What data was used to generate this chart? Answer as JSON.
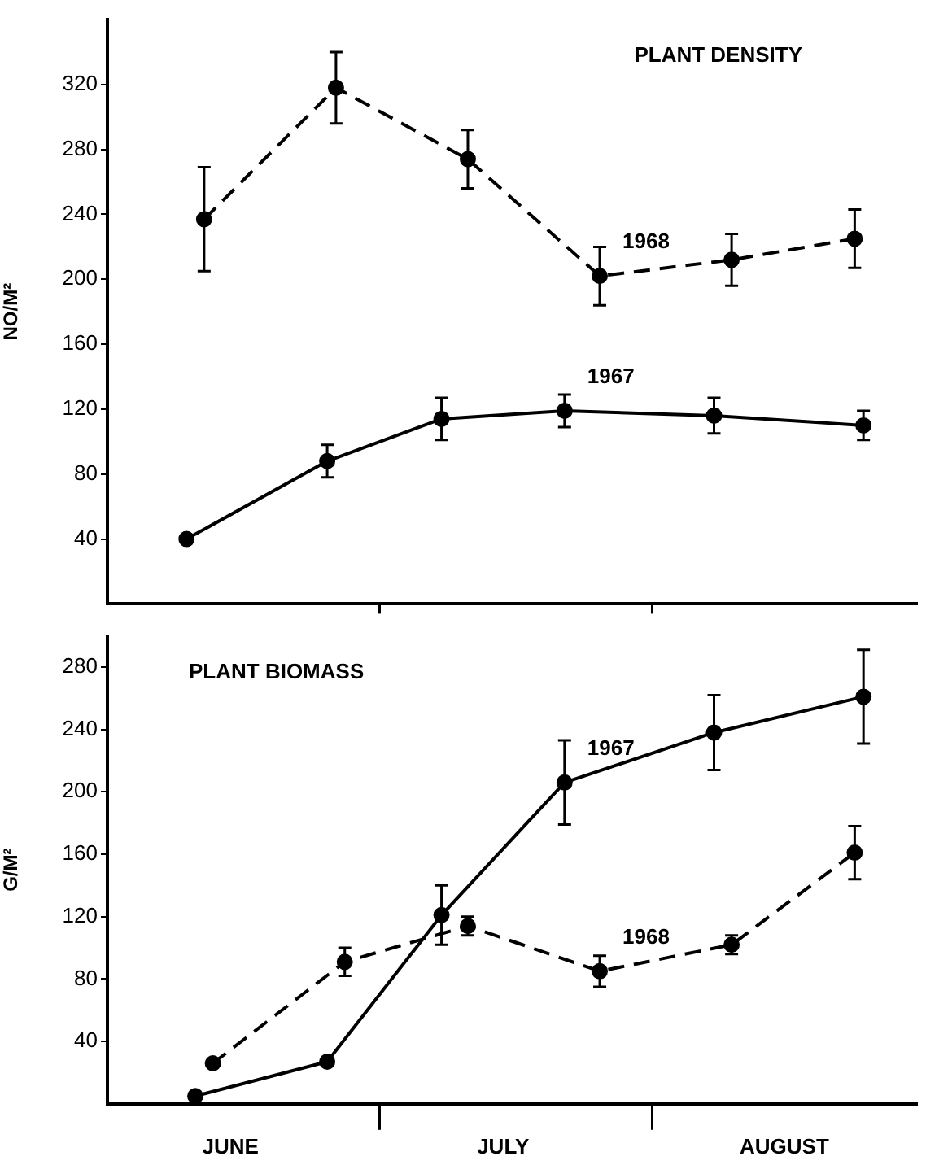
{
  "chart_data": [
    {
      "type": "line",
      "title": "PLANT DENSITY",
      "ylabel": "NO/M²",
      "xlim": [
        "--05-31",
        "--08-31"
      ],
      "xticks": [
        {
          "value": "--07-01",
          "label": null
        },
        {
          "value": "--08-01",
          "label": null
        }
      ],
      "ylim": [
        0,
        360
      ],
      "yticks": [
        40,
        80,
        120,
        160,
        200,
        240,
        280,
        320
      ],
      "tick_labels": "y",
      "marker": "circle",
      "series": [
        {
          "name": "1968",
          "color": "#000000",
          "line_style": "dashed",
          "x": [
            "--06-11",
            "--06-26",
            "--07-11",
            "--07-26",
            "--08-10",
            "--08-24"
          ],
          "values": [
            237,
            318,
            274,
            202,
            212,
            225
          ],
          "errors": [
            32,
            22,
            18,
            18,
            16,
            18
          ]
        },
        {
          "name": "1967",
          "color": "#000000",
          "line_style": "solid",
          "x": [
            "--06-09",
            "--06-25",
            "--07-08",
            "--07-22",
            "--08-08",
            "--08-25"
          ],
          "values": [
            40,
            88,
            114,
            119,
            116,
            110
          ],
          "errors": [
            null,
            10,
            13,
            10,
            11,
            9
          ]
        }
      ]
    },
    {
      "type": "line",
      "title": "PLANT BIOMASS",
      "ylabel": "G/M²",
      "xlim": [
        "--05-31",
        "--08-31"
      ],
      "xticks": [
        {
          "value": "--06-14",
          "label": "JUNE"
        },
        {
          "value": "--07-01",
          "label": null
        },
        {
          "value": "--07-15",
          "label": "JULY"
        },
        {
          "value": "--08-01",
          "label": null
        },
        {
          "value": "--08-16",
          "label": "AUGUST"
        }
      ],
      "ylim": [
        0,
        300
      ],
      "yticks": [
        40,
        80,
        120,
        160,
        200,
        240,
        280
      ],
      "marker": "circle",
      "series": [
        {
          "name": "1967",
          "color": "#000000",
          "line_style": "solid",
          "x": [
            "--06-10",
            "--06-25",
            "--07-08",
            "--07-22",
            "--08-08",
            "--08-25"
          ],
          "values": [
            5,
            27,
            121,
            206,
            238,
            261
          ],
          "errors": [
            null,
            null,
            19,
            27,
            24,
            30
          ]
        },
        {
          "name": "1968",
          "color": "#000000",
          "line_style": "dashed",
          "x": [
            "--06-12",
            "--06-27",
            "--07-11",
            "--07-26",
            "--08-10",
            "--08-24"
          ],
          "values": [
            26,
            91,
            114,
            85,
            102,
            161
          ],
          "errors": [
            null,
            9,
            6,
            10,
            6,
            17
          ]
        }
      ]
    }
  ]
}
